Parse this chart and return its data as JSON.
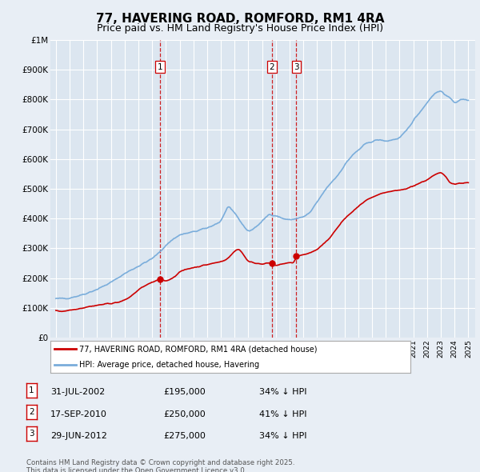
{
  "title": "77, HAVERING ROAD, ROMFORD, RM1 4RA",
  "subtitle": "Price paid vs. HM Land Registry's House Price Index (HPI)",
  "title_fontsize": 11,
  "subtitle_fontsize": 9,
  "background_color": "#e8eef5",
  "plot_bg_color": "#dce6f0",
  "grid_color": "#ffffff",
  "ylim": [
    0,
    1000000
  ],
  "ytick_vals": [
    0,
    100000,
    200000,
    300000,
    400000,
    500000,
    600000,
    700000,
    800000,
    900000,
    1000000
  ],
  "ytick_labels": [
    "£0",
    "£100K",
    "£200K",
    "£300K",
    "£400K",
    "£500K",
    "£600K",
    "£700K",
    "£800K",
    "£900K",
    "£1M"
  ],
  "vline_color": "#cc0000",
  "hpi_color": "#7aaddb",
  "price_color": "#cc0000",
  "legend_line1": "77, HAVERING ROAD, ROMFORD, RM1 4RA (detached house)",
  "legend_line2": "HPI: Average price, detached house, Havering",
  "table_rows": [
    {
      "label": "1",
      "date": "31-JUL-2002",
      "price": "£195,000",
      "note": "34% ↓ HPI"
    },
    {
      "label": "2",
      "date": "17-SEP-2010",
      "price": "£250,000",
      "note": "41% ↓ HPI"
    },
    {
      "label": "3",
      "date": "29-JUN-2012",
      "price": "£275,000",
      "note": "34% ↓ HPI"
    }
  ],
  "footer_line1": "Contains HM Land Registry data © Crown copyright and database right 2025.",
  "footer_line2": "This data is licensed under the Open Government Licence v3.0.",
  "sale_year_decimals": [
    2002.58,
    2010.72,
    2012.49
  ],
  "sale_labels": [
    "1",
    "2",
    "3"
  ]
}
